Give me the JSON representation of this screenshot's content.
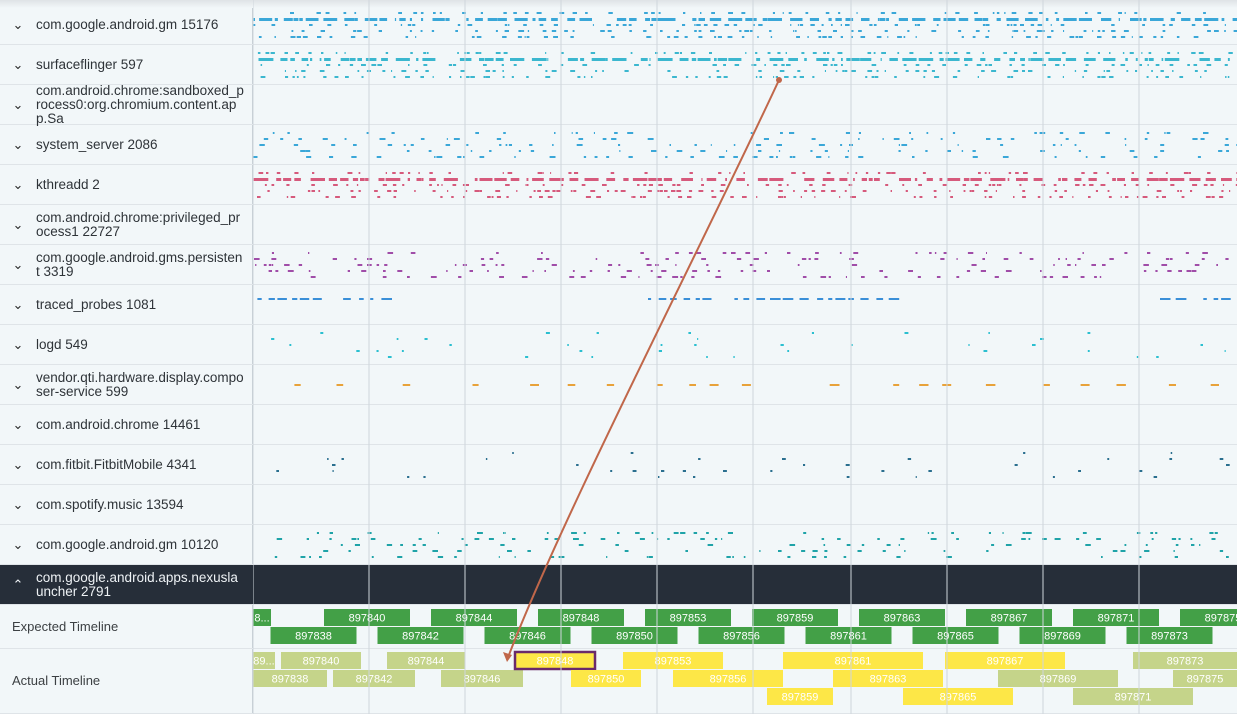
{
  "processes": [
    {
      "name": "com.google.android.gm 15176",
      "color": "#3aa7d8",
      "pattern": "dense"
    },
    {
      "name": "surfaceflinger 597",
      "color": "#3bb7cf",
      "pattern": "dense"
    },
    {
      "name": "com.android.chrome:sandboxed_process0:org.chromium.content.app.Sa",
      "color": "#3aa7d8",
      "pattern": "none"
    },
    {
      "name": "system_server 2086",
      "color": "#3aa7d8",
      "pattern": "medium"
    },
    {
      "name": "kthreadd 2",
      "color": "#d65a7c",
      "pattern": "dense"
    },
    {
      "name": "com.android.chrome:privileged_process1 22727",
      "color": "#3aa7d8",
      "pattern": "none"
    },
    {
      "name": "com.google.android.gms.persistent 3319",
      "color": "#a04da8",
      "pattern": "medium"
    },
    {
      "name": "traced_probes 1081",
      "color": "#3a8fd8",
      "pattern": "traced"
    },
    {
      "name": "logd 549",
      "color": "#2bbfd0",
      "pattern": "sparse"
    },
    {
      "name": "vendor.qti.hardware.display.composer-service 599",
      "color": "#e8a23a",
      "pattern": "dashes"
    },
    {
      "name": "com.android.chrome 14461",
      "color": "#3aa7d8",
      "pattern": "none"
    },
    {
      "name": "com.fitbit.FitbitMobile 4341",
      "color": "#2a6f8f",
      "pattern": "sparse"
    },
    {
      "name": "com.spotify.music 13594",
      "color": "#3aa7d8",
      "pattern": "none"
    },
    {
      "name": "com.google.android.gm 10120",
      "color": "#1fa3a8",
      "pattern": "medium"
    }
  ],
  "selected_process": {
    "name": "com.google.android.apps.nexuslauncher 2791"
  },
  "expected_timeline": {
    "label": "Expected Timeline",
    "color": "#43a047",
    "frames": [
      {
        "id": "8...",
        "lane": 0
      },
      {
        "id": "897838",
        "lane": 1
      },
      {
        "id": "897840",
        "lane": 0
      },
      {
        "id": "897842",
        "lane": 1
      },
      {
        "id": "897844",
        "lane": 0
      },
      {
        "id": "897846",
        "lane": 1
      },
      {
        "id": "897848",
        "lane": 0
      },
      {
        "id": "897850",
        "lane": 1
      },
      {
        "id": "897853",
        "lane": 0
      },
      {
        "id": "897856",
        "lane": 1
      },
      {
        "id": "897859",
        "lane": 0
      },
      {
        "id": "897861",
        "lane": 1
      },
      {
        "id": "897863",
        "lane": 0
      },
      {
        "id": "897865",
        "lane": 1
      },
      {
        "id": "897867",
        "lane": 0
      },
      {
        "id": "897869",
        "lane": 1
      },
      {
        "id": "897871",
        "lane": 0
      },
      {
        "id": "897873",
        "lane": 1
      },
      {
        "id": "897875",
        "lane": 0
      }
    ]
  },
  "actual_timeline": {
    "label": "Actual Timeline",
    "color_ok": "#c5d48a",
    "color_late": "#fde747",
    "selected_border": "#6a2a6a",
    "frames": [
      {
        "id": "89...",
        "lane": 0,
        "state": "ok"
      },
      {
        "id": "897838",
        "lane": 1,
        "state": "ok"
      },
      {
        "id": "897840",
        "lane": 0,
        "state": "ok"
      },
      {
        "id": "897842",
        "lane": 1,
        "state": "ok"
      },
      {
        "id": "897844",
        "lane": 0,
        "state": "ok"
      },
      {
        "id": "897846",
        "lane": 1,
        "state": "ok"
      },
      {
        "id": "897848",
        "lane": 0,
        "state": "selected"
      },
      {
        "id": "897850",
        "lane": 1,
        "state": "late"
      },
      {
        "id": "897853",
        "lane": 0,
        "state": "late"
      },
      {
        "id": "897856",
        "lane": 1,
        "state": "late"
      },
      {
        "id": "897859",
        "lane": 2,
        "state": "late"
      },
      {
        "id": "897861",
        "lane": 0,
        "state": "late"
      },
      {
        "id": "897863",
        "lane": 1,
        "state": "late"
      },
      {
        "id": "897865",
        "lane": 2,
        "state": "late"
      },
      {
        "id": "897867",
        "lane": 0,
        "state": "late"
      },
      {
        "id": "897869",
        "lane": 1,
        "state": "ok"
      },
      {
        "id": "897871",
        "lane": 2,
        "state": "ok"
      },
      {
        "id": "897873",
        "lane": 0,
        "state": "ok"
      },
      {
        "id": "897875",
        "lane": 1,
        "state": "ok"
      }
    ]
  },
  "icons": {
    "expanded": "chevron-down-icon",
    "collapsed": "chevron-up-icon"
  },
  "flow_arrow_color": "#c0674a"
}
